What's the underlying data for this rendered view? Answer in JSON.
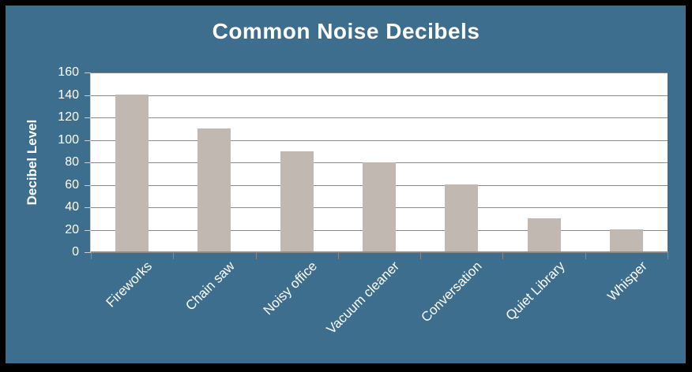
{
  "chart_data": {
    "type": "bar",
    "title": "Common Noise Decibels",
    "xlabel": "",
    "ylabel": "Decibel Level",
    "categories": [
      "Fireworks",
      "Chain saw",
      "Noisy office",
      "Vacuum cleaner",
      "Conversation",
      "Quiet Library",
      "Whisper"
    ],
    "values": [
      140,
      110,
      90,
      80,
      60,
      30,
      20
    ],
    "ylim": [
      0,
      160
    ],
    "yticks": [
      0,
      20,
      40,
      60,
      80,
      100,
      120,
      140,
      160
    ],
    "grid": true,
    "legend": false,
    "x_label_rotation_deg": 45
  },
  "colors": {
    "frame_border": "#000000",
    "chart_background": "#3d6e8e",
    "plot_background": "#ffffff",
    "bar_fill": "#c1b9b1",
    "gridline": "#8a8a8a",
    "axis_line": "#8a8a8a",
    "axis_line_light": "#cfcfcf",
    "text": "#ffffff"
  }
}
